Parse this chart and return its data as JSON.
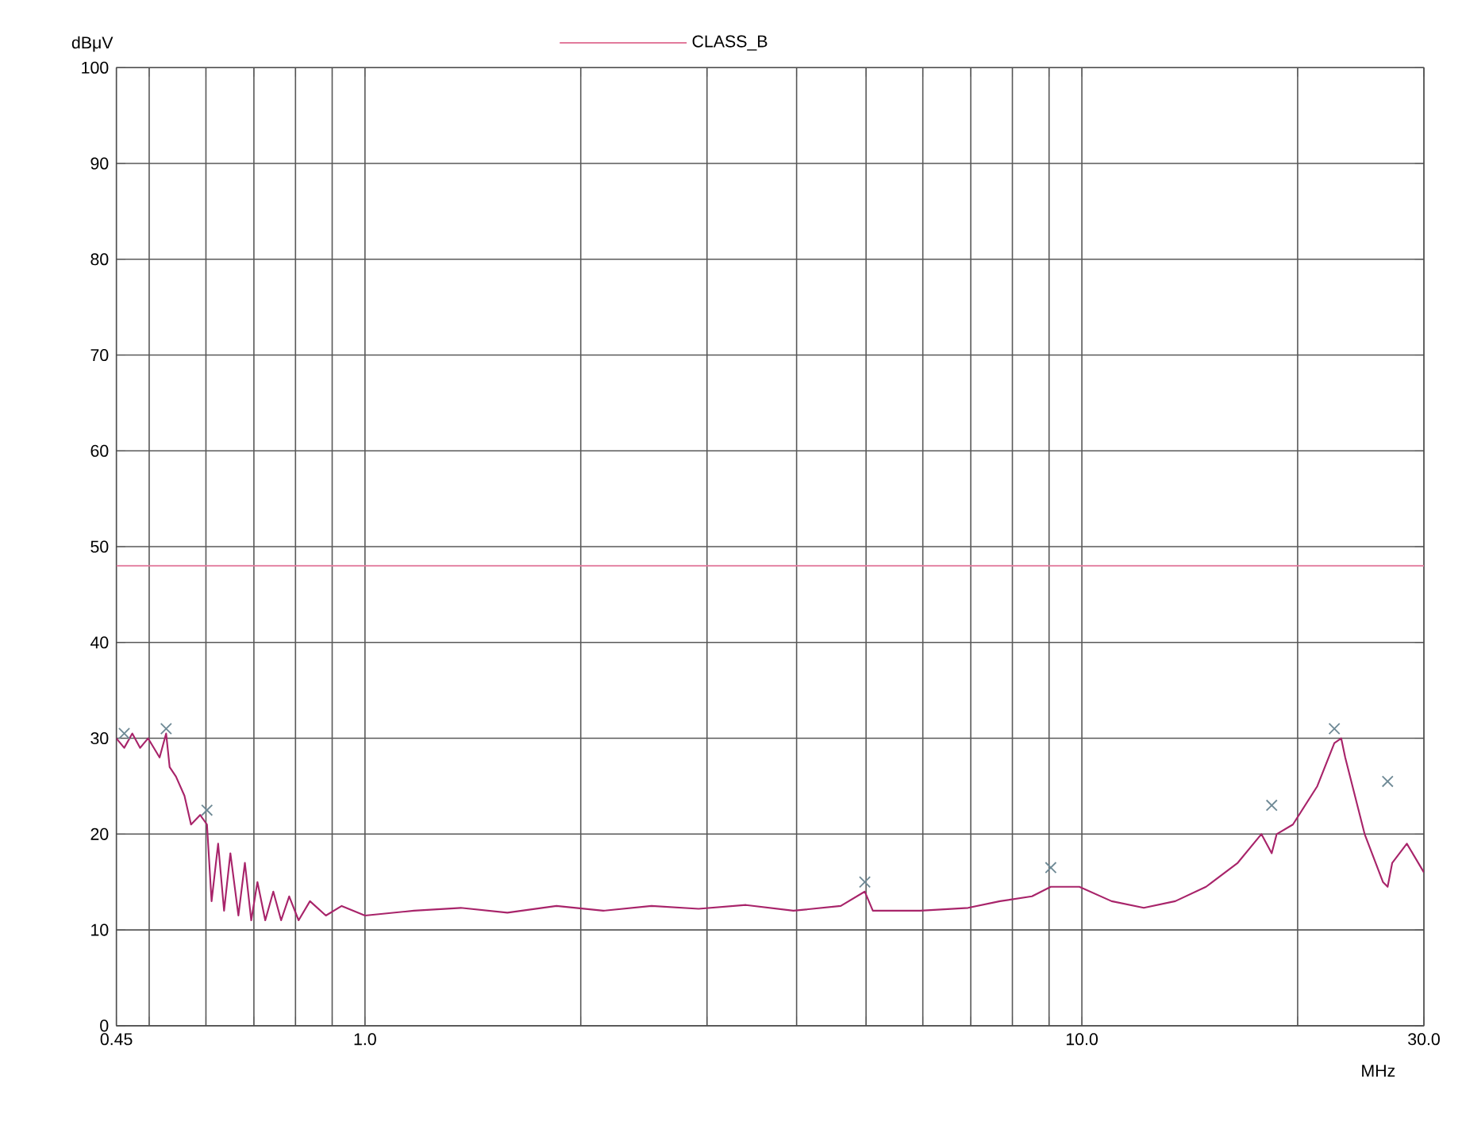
{
  "chart_data": {
    "type": "line",
    "xlabel": "MHz",
    "ylabel": "dBμV",
    "log": "x",
    "grid": true,
    "legend": "top",
    "xlim": [
      0.45,
      30
    ],
    "ylim": [
      0,
      100
    ],
    "xticks": [
      {
        "value": 0.45,
        "label": "0.45"
      },
      {
        "value": 0.5,
        "label": null
      },
      {
        "value": 0.6,
        "label": null
      },
      {
        "value": 0.7,
        "label": null
      },
      {
        "value": 0.8,
        "label": null
      },
      {
        "value": 0.9,
        "label": null
      },
      {
        "value": 1,
        "label": "1.0"
      },
      {
        "value": 2,
        "label": null
      },
      {
        "value": 3,
        "label": null
      },
      {
        "value": 4,
        "label": null
      },
      {
        "value": 5,
        "label": null
      },
      {
        "value": 6,
        "label": null
      },
      {
        "value": 7,
        "label": null
      },
      {
        "value": 8,
        "label": null
      },
      {
        "value": 9,
        "label": null
      },
      {
        "value": 10,
        "label": "10.0"
      },
      {
        "value": 20,
        "label": null
      },
      {
        "value": 30,
        "label": "30.0"
      }
    ],
    "yticks": [
      0,
      10,
      20,
      30,
      40,
      50,
      60,
      70,
      80,
      90,
      100
    ],
    "series": [
      {
        "color": "#a8246a",
        "x": [
          0.45,
          0.4615,
          0.4736,
          0.4857,
          0.4982,
          0.517,
          0.528,
          0.534,
          0.545,
          0.56,
          0.572,
          0.589,
          0.602,
          0.611,
          0.624,
          0.636,
          0.649,
          0.666,
          0.68,
          0.694,
          0.708,
          0.726,
          0.745,
          0.764,
          0.784,
          0.808,
          0.838,
          0.882,
          0.928,
          1.0,
          1.17,
          1.36,
          1.58,
          1.85,
          2.15,
          2.51,
          2.92,
          3.4,
          3.96,
          4.61,
          4.98,
          5.11,
          5.95,
          6.94,
          7.69,
          8.52,
          9.05,
          9.92,
          11.0,
          12.2,
          13.5,
          14.9,
          16.5,
          17.8,
          18.4,
          18.7,
          19.7,
          21.3,
          22.5,
          23.0,
          23.3,
          24.8,
          26.3,
          26.7,
          27.1,
          28.4,
          30.0
        ],
        "values": [
          30,
          29,
          30.5,
          29,
          30,
          28,
          30.5,
          27,
          26,
          24,
          21,
          22,
          21,
          13,
          19,
          12,
          18,
          11.5,
          17,
          11,
          15,
          11,
          14,
          11,
          13.5,
          11,
          13,
          11.5,
          12.5,
          11.5,
          12,
          12.3,
          11.8,
          12.5,
          12,
          12.5,
          12.2,
          12.6,
          12,
          12.5,
          14,
          12,
          12,
          12.3,
          13,
          13.5,
          14.5,
          14.5,
          13,
          12.3,
          13,
          14.5,
          17,
          20,
          18,
          20,
          21,
          25,
          29.5,
          30,
          28,
          20,
          15,
          14.5,
          17,
          19,
          16
        ]
      },
      {
        "name": "CLASS_B",
        "color": "#e27a9c",
        "x": [
          0.45,
          30
        ],
        "values": [
          48,
          48
        ]
      },
      {
        "type": "scatter",
        "marker": "cross",
        "color": "#6f8a96",
        "x": [
          0.4615,
          0.528,
          0.602,
          4.98,
          9.05,
          18.4,
          22.5,
          26.7
        ],
        "values": [
          30.5,
          31,
          22.5,
          15,
          16.5,
          23,
          31,
          25.5
        ]
      }
    ]
  }
}
